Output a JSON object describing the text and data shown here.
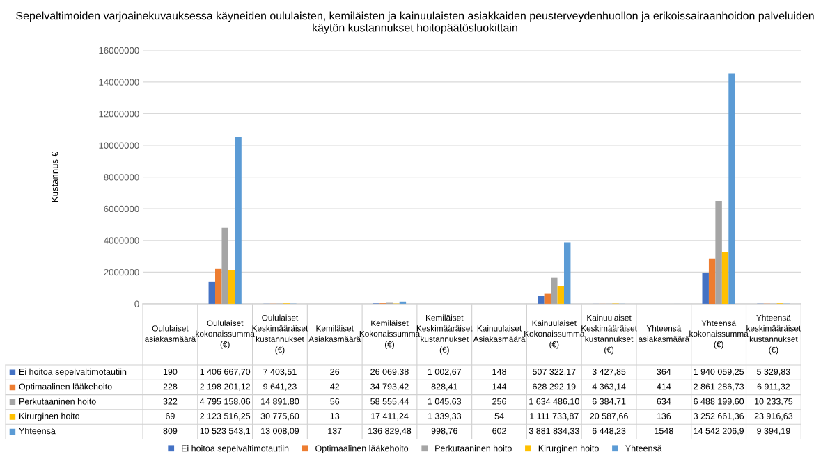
{
  "chart_data": {
    "type": "bar",
    "title": "Sepelvaltimoiden varjoainekuvauksessa käyneiden oululaisten, kemiläisten ja kainuulaisten asiakkaiden peusterveydenhuollon ja erikoissairaanhoidon palveluiden käytön kustannukset hoitopäätösluokittain",
    "ylabel": "Kustannus €",
    "categories": [
      "Oululaiset asiakasmäärä",
      "Oululaiset kokonaissumma (€)",
      "Oululaiset Keskimääräiset kustannukset (€)",
      "Kemiläiset Asiakasmäärä",
      "Kemiläiset Kokonaissumma (€)",
      "Kemiläiset Keskimääräiset kustannukset (€)",
      "Kainuulaiset Asiakasmäärä",
      "Kainuulaiset Kokonaissumma (€)",
      "Kainuulaiset Keskimääräiset kustannukset (€)",
      "Yhteensä asiakasmäärä",
      "Yhteensä kokonaissumma (€)",
      "Yhteensä keskimääräiset kustannukset (€)"
    ],
    "series": [
      {
        "name": "Ei hoitoa sepelvaltimotautiin",
        "color": "#4472c4",
        "values": [
          190,
          1406667.7,
          7403.51,
          26,
          26069.38,
          1002.67,
          148,
          507322.17,
          3427.85,
          364,
          1940059.25,
          5329.83
        ],
        "value_labels": [
          "190",
          "1 406 667,70",
          "7 403,51",
          "26",
          "26 069,38",
          "1 002,67",
          "148",
          "507 322,17",
          "3 427,85",
          "364",
          "1 940 059,25",
          "5 329,83"
        ]
      },
      {
        "name": "Optimaalinen lääkehoito",
        "color": "#ed7d31",
        "values": [
          228,
          2198201.12,
          9641.23,
          42,
          34793.42,
          828.41,
          144,
          628292.19,
          4363.14,
          414,
          2861286.73,
          6911.32
        ],
        "value_labels": [
          "228",
          "2 198 201,12",
          "9 641,23",
          "42",
          "34 793,42",
          "828,41",
          "144",
          "628 292,19",
          "4 363,14",
          "414",
          "2 861 286,73",
          "6 911,32"
        ]
      },
      {
        "name": "Perkutaaninen hoito",
        "color": "#a5a5a5",
        "values": [
          322,
          4795158.06,
          14891.8,
          56,
          58555.44,
          1045.63,
          256,
          1634486.1,
          6384.71,
          634,
          6488199.6,
          10233.75
        ],
        "value_labels": [
          "322",
          "4 795 158,06",
          "14 891,80",
          "56",
          "58 555,44",
          "1 045,63",
          "256",
          "1 634 486,10",
          "6 384,71",
          "634",
          "6 488 199,60",
          "10 233,75"
        ]
      },
      {
        "name": "Kirurginen hoito",
        "color": "#ffc000",
        "values": [
          69,
          2123516.25,
          30775.6,
          13,
          17411.24,
          1339.33,
          54,
          1111733.87,
          20587.66,
          136,
          3252661.36,
          23916.63
        ],
        "value_labels": [
          "69",
          "2 123 516,25",
          "30 775,60",
          "13",
          "17 411,24",
          "1 339,33",
          "54",
          "1 111 733,87",
          "20 587,66",
          "136",
          "3 252 661,36",
          "23 916,63"
        ]
      },
      {
        "name": "Yhteensä",
        "color": "#5b9bd5",
        "values": [
          809,
          10523543.1,
          13008.09,
          137,
          136829.48,
          998.76,
          602,
          3881834.33,
          6448.23,
          1548,
          14542206.9,
          9394.19
        ],
        "value_labels": [
          "809",
          "10 523 543,1",
          "13 008,09",
          "137",
          "136 829,48",
          "998,76",
          "602",
          "3 881 834,33",
          "6 448,23",
          "1548",
          "14 542 206,9",
          "9 394,19"
        ]
      }
    ],
    "ylim": [
      0,
      16000000
    ],
    "yticks": [
      0,
      2000000,
      4000000,
      6000000,
      8000000,
      10000000,
      12000000,
      14000000,
      16000000
    ],
    "grid": "y",
    "legend": "bottom"
  }
}
